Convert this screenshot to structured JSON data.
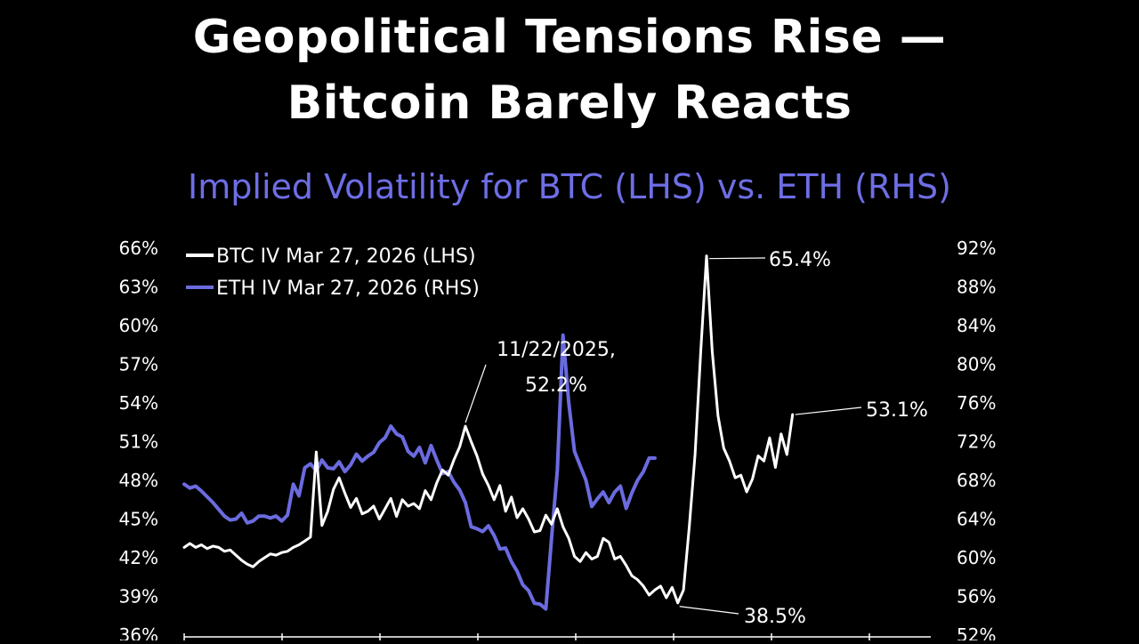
{
  "header": {
    "title_line1": "Geopolitical Tensions Rise —",
    "title_line2": "Bitcoin Barely Reacts",
    "subtitle": "Implied Volatility for BTC (LHS) vs. ETH (RHS)"
  },
  "colors": {
    "btc": "#ffffff",
    "eth": "#6b6be0",
    "background": "#000000"
  },
  "chart_data": {
    "type": "line",
    "title": "Implied Volatility for BTC (LHS) vs. ETH (RHS)",
    "legend_position": "top-left",
    "grid": false,
    "left_axis": {
      "ticks": [
        "66%",
        "63%",
        "60%",
        "57%",
        "54%",
        "51%",
        "48%",
        "45%",
        "42%",
        "39%",
        "36%"
      ],
      "ylim": [
        36,
        66
      ]
    },
    "right_axis": {
      "ticks": [
        "92%",
        "88%",
        "84%",
        "80%",
        "76%",
        "72%",
        "68%",
        "64%",
        "60%",
        "56%",
        "52%"
      ],
      "ylim": [
        52,
        92
      ]
    },
    "x_index_range": [
      0,
      100
    ],
    "series": [
      {
        "name": "BTC IV Mar 27, 2026 (LHS)",
        "axis": "left",
        "points": [
          [
            0,
            42.8
          ],
          [
            1,
            43.1
          ],
          [
            2,
            42.8
          ],
          [
            3,
            43.0
          ],
          [
            4,
            42.7
          ],
          [
            5,
            42.9
          ],
          [
            6,
            42.8
          ],
          [
            7,
            42.5
          ],
          [
            8,
            42.6
          ],
          [
            9,
            42.2
          ],
          [
            10,
            41.8
          ],
          [
            11,
            41.5
          ],
          [
            12,
            41.3
          ],
          [
            13,
            41.7
          ],
          [
            14,
            42.0
          ],
          [
            15,
            42.3
          ],
          [
            16,
            42.2
          ],
          [
            17,
            42.4
          ],
          [
            18,
            42.5
          ],
          [
            19,
            42.8
          ],
          [
            20,
            43.0
          ],
          [
            21,
            43.3
          ],
          [
            22,
            43.6
          ],
          [
            23,
            50.2
          ],
          [
            24,
            44.5
          ],
          [
            25,
            45.6
          ],
          [
            26,
            47.3
          ],
          [
            27,
            48.2
          ],
          [
            28,
            47.0
          ],
          [
            29,
            45.9
          ],
          [
            30,
            46.6
          ],
          [
            31,
            45.4
          ],
          [
            32,
            45.6
          ],
          [
            33,
            46.0
          ],
          [
            34,
            45.0
          ],
          [
            35,
            45.8
          ],
          [
            36,
            46.6
          ],
          [
            37,
            45.2
          ],
          [
            38,
            46.5
          ],
          [
            39,
            46.0
          ],
          [
            40,
            46.2
          ],
          [
            41,
            45.8
          ],
          [
            42,
            47.2
          ],
          [
            43,
            46.5
          ],
          [
            44,
            47.8
          ],
          [
            45,
            48.8
          ],
          [
            46,
            48.4
          ],
          [
            47,
            49.6
          ],
          [
            48,
            50.6
          ],
          [
            49,
            52.2
          ],
          [
            50,
            51.0
          ],
          [
            51,
            49.9
          ],
          [
            52,
            48.5
          ],
          [
            53,
            47.6
          ],
          [
            54,
            46.5
          ],
          [
            55,
            47.6
          ],
          [
            56,
            45.6
          ],
          [
            57,
            46.7
          ],
          [
            58,
            45.1
          ],
          [
            59,
            45.8
          ],
          [
            60,
            45.0
          ],
          [
            61,
            44.0
          ],
          [
            62,
            44.1
          ],
          [
            63,
            45.3
          ],
          [
            64,
            44.6
          ],
          [
            65,
            45.8
          ],
          [
            66,
            44.4
          ],
          [
            67,
            43.5
          ],
          [
            68,
            42.1
          ],
          [
            69,
            41.7
          ],
          [
            70,
            42.4
          ],
          [
            71,
            41.9
          ],
          [
            72,
            42.1
          ],
          [
            73,
            43.5
          ],
          [
            74,
            43.2
          ],
          [
            75,
            41.9
          ],
          [
            76,
            42.1
          ],
          [
            77,
            41.4
          ],
          [
            78,
            40.6
          ],
          [
            79,
            40.3
          ],
          [
            80,
            39.8
          ],
          [
            81,
            39.1
          ],
          [
            82,
            39.5
          ],
          [
            83,
            39.8
          ],
          [
            84,
            38.9
          ],
          [
            85,
            39.7
          ],
          [
            86,
            38.5
          ],
          [
            87,
            39.5
          ],
          [
            88,
            44.4
          ],
          [
            89,
            50.0
          ],
          [
            90,
            58.0
          ],
          [
            91,
            65.4
          ],
          [
            92,
            58.0
          ],
          [
            93,
            53.0
          ],
          [
            94,
            50.5
          ],
          [
            95,
            49.5
          ],
          [
            96,
            48.2
          ],
          [
            97,
            48.4
          ],
          [
            98,
            47.1
          ],
          [
            99,
            48.1
          ],
          [
            100,
            49.9
          ],
          [
            101,
            49.5
          ],
          [
            102,
            51.3
          ],
          [
            103,
            49.0
          ],
          [
            104,
            51.6
          ],
          [
            105,
            50.0
          ],
          [
            106,
            53.1
          ]
        ]
      },
      {
        "name": "ETH IV Mar 27, 2026 (RHS)",
        "axis": "right",
        "points": [
          [
            0,
            67.6
          ],
          [
            1,
            67.2
          ],
          [
            2,
            67.4
          ],
          [
            3,
            66.9
          ],
          [
            4,
            66.3
          ],
          [
            5,
            65.7
          ],
          [
            6,
            65.0
          ],
          [
            7,
            64.3
          ],
          [
            8,
            63.9
          ],
          [
            9,
            64.0
          ],
          [
            10,
            64.6
          ],
          [
            11,
            63.6
          ],
          [
            12,
            63.8
          ],
          [
            13,
            64.3
          ],
          [
            14,
            64.3
          ],
          [
            15,
            64.1
          ],
          [
            16,
            64.3
          ],
          [
            17,
            63.8
          ],
          [
            18,
            64.4
          ],
          [
            19,
            67.6
          ],
          [
            20,
            66.4
          ],
          [
            21,
            69.3
          ],
          [
            22,
            69.7
          ],
          [
            23,
            69.0
          ],
          [
            24,
            70.1
          ],
          [
            25,
            69.3
          ],
          [
            26,
            69.2
          ],
          [
            27,
            69.9
          ],
          [
            28,
            68.9
          ],
          [
            29,
            69.6
          ],
          [
            30,
            70.7
          ],
          [
            31,
            70.0
          ],
          [
            32,
            70.5
          ],
          [
            33,
            70.9
          ],
          [
            34,
            71.9
          ],
          [
            35,
            72.4
          ],
          [
            36,
            73.6
          ],
          [
            37,
            72.8
          ],
          [
            38,
            72.5
          ],
          [
            39,
            71.0
          ],
          [
            40,
            70.5
          ],
          [
            41,
            71.4
          ],
          [
            42,
            69.8
          ],
          [
            43,
            71.6
          ],
          [
            44,
            70.1
          ],
          [
            45,
            68.7
          ],
          [
            46,
            68.9
          ],
          [
            47,
            67.8
          ],
          [
            48,
            67.0
          ],
          [
            49,
            65.7
          ],
          [
            50,
            63.2
          ],
          [
            51,
            63.0
          ],
          [
            52,
            62.7
          ],
          [
            53,
            63.3
          ],
          [
            54,
            62.3
          ],
          [
            55,
            60.9
          ],
          [
            56,
            61.0
          ],
          [
            57,
            59.6
          ],
          [
            58,
            58.6
          ],
          [
            59,
            57.2
          ],
          [
            60,
            56.6
          ],
          [
            61,
            55.3
          ],
          [
            62,
            55.2
          ],
          [
            63,
            54.7
          ],
          [
            64,
            62.0
          ],
          [
            65,
            69.0
          ],
          [
            66,
            83.0
          ],
          [
            67,
            76.0
          ],
          [
            68,
            71.0
          ],
          [
            69,
            69.5
          ],
          [
            70,
            68.0
          ],
          [
            71,
            65.3
          ],
          [
            72,
            66.1
          ],
          [
            73,
            66.8
          ],
          [
            74,
            65.7
          ],
          [
            75,
            66.8
          ],
          [
            76,
            67.4
          ],
          [
            77,
            65.1
          ],
          [
            78,
            66.7
          ],
          [
            79,
            68.0
          ],
          [
            80,
            68.9
          ],
          [
            81,
            70.3
          ],
          [
            82,
            70.3
          ]
        ]
      }
    ],
    "annotations": [
      {
        "text": "11/22/2025,",
        "text2": "52.2%",
        "series": "BTC"
      },
      {
        "text": "65.4%",
        "series": "BTC"
      },
      {
        "text": "53.1%",
        "series": "BTC"
      },
      {
        "text": "38.5%",
        "series": "BTC"
      }
    ]
  }
}
